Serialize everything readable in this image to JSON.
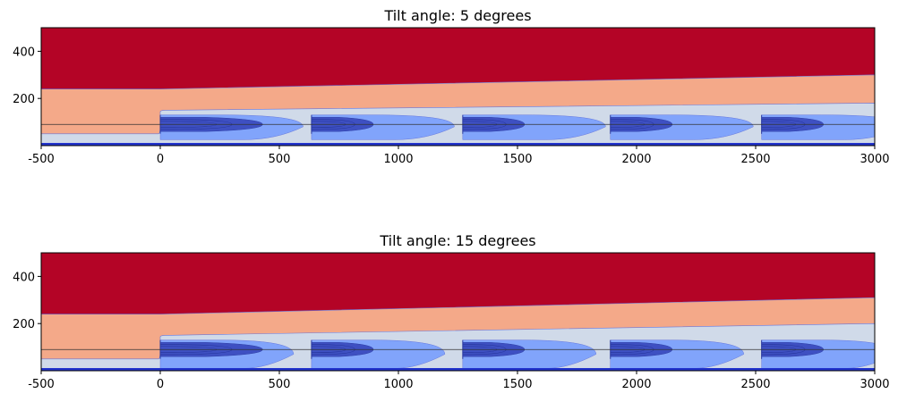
{
  "chart_data": [
    {
      "type": "contour",
      "title": "Tilt angle: 5 degrees",
      "xlabel": "",
      "ylabel": "",
      "xlim": [
        -500,
        3000
      ],
      "ylim": [
        0,
        500
      ],
      "xticks": [
        -500,
        0,
        500,
        1000,
        1500,
        2000,
        2500,
        3000
      ],
      "yticks": [
        200,
        400
      ],
      "tilt_deg": 5,
      "colors": {
        "top": "#b40426",
        "upper": "#f4a989",
        "middle": "#d0dae9",
        "lower": "#81a4fb",
        "core": "#3b4cc0",
        "line": "#6677dd",
        "hub": "#333333",
        "ground": "#2233cc"
      },
      "hub_height": 90,
      "rotor_x": [
        0,
        635,
        1270,
        1890,
        2525
      ],
      "boundaries": {
        "top_upper": [
          [
            -500,
            240
          ],
          [
            0,
            240
          ],
          [
            3000,
            300
          ]
        ],
        "upper_middle": [
          [
            -500,
            50
          ],
          [
            0,
            150
          ],
          [
            3000,
            180
          ]
        ]
      }
    },
    {
      "type": "contour",
      "title": "Tilt angle: 15 degrees",
      "xlabel": "",
      "ylabel": "",
      "xlim": [
        -500,
        3000
      ],
      "ylim": [
        0,
        500
      ],
      "xticks": [
        -500,
        0,
        500,
        1000,
        1500,
        2000,
        2500,
        3000
      ],
      "yticks": [
        200,
        400
      ],
      "tilt_deg": 15,
      "colors": {
        "top": "#b40426",
        "upper": "#f4a989",
        "middle": "#d0dae9",
        "lower": "#81a4fb",
        "core": "#3b4cc0",
        "line": "#6677dd",
        "hub": "#333333",
        "ground": "#2233cc"
      },
      "hub_height": 90,
      "rotor_x": [
        0,
        635,
        1270,
        1890,
        2525
      ],
      "boundaries": {
        "top_upper": [
          [
            -500,
            240
          ],
          [
            0,
            240
          ],
          [
            3000,
            310
          ]
        ],
        "upper_middle": [
          [
            -500,
            50
          ],
          [
            0,
            150
          ],
          [
            3000,
            200
          ]
        ]
      }
    }
  ]
}
